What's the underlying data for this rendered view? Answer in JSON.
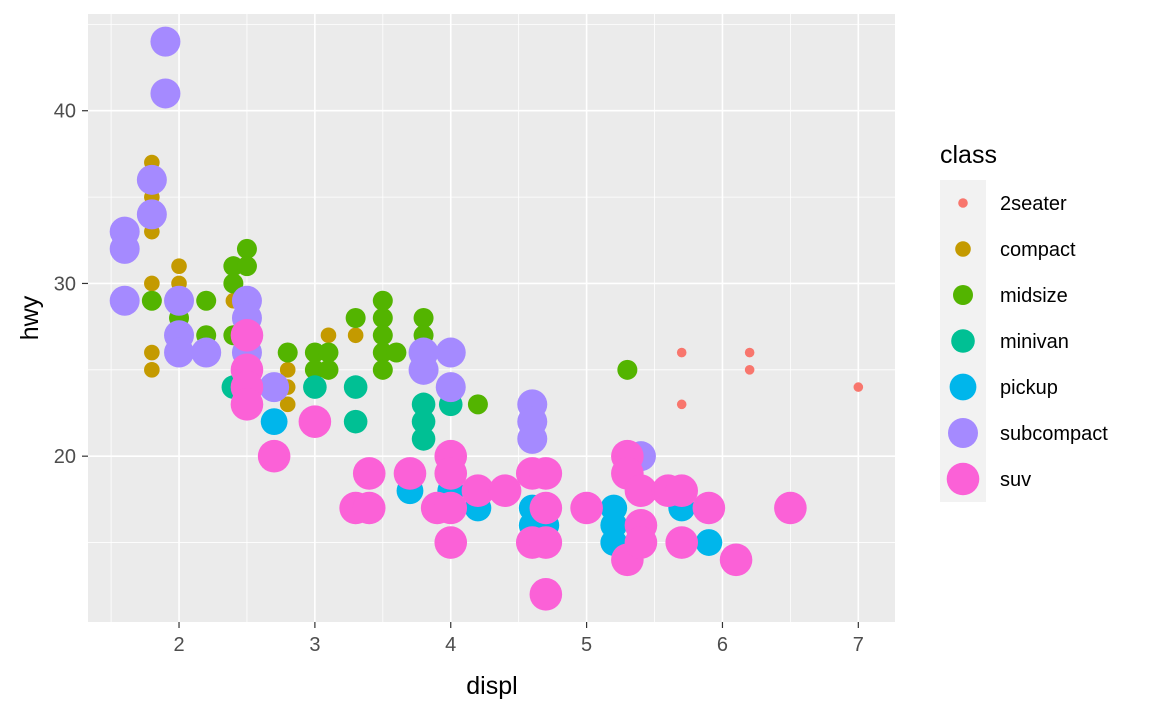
{
  "chart_data": {
    "type": "scatter",
    "title": "",
    "xlabel": "displ",
    "ylabel": "hwy",
    "xlim": [
      1.33,
      7.27
    ],
    "ylim": [
      10.4,
      45.6
    ],
    "xticks": [
      2,
      3,
      4,
      5,
      6,
      7
    ],
    "yticks": [
      20,
      30,
      40
    ],
    "grid": true,
    "legend": {
      "title": "class",
      "placement": "right",
      "encodes": "color and size"
    },
    "series": [
      {
        "name": "2seater",
        "color": "#F8766D",
        "size_level": 1,
        "points": [
          [
            5.7,
            26
          ],
          [
            5.7,
            23
          ],
          [
            6.2,
            26
          ],
          [
            6.2,
            25
          ],
          [
            7.0,
            24
          ]
        ]
      },
      {
        "name": "compact",
        "color": "#C49A00",
        "size_level": 2,
        "points": [
          [
            1.8,
            37
          ],
          [
            1.8,
            35
          ],
          [
            1.8,
            33
          ],
          [
            1.8,
            30
          ],
          [
            1.8,
            26
          ],
          [
            1.8,
            25
          ],
          [
            2.0,
            31
          ],
          [
            2.0,
            30
          ],
          [
            2.0,
            29
          ],
          [
            2.0,
            28
          ],
          [
            2.2,
            29
          ],
          [
            2.2,
            27
          ],
          [
            2.4,
            31
          ],
          [
            2.4,
            29
          ],
          [
            2.5,
            27
          ],
          [
            2.5,
            25
          ],
          [
            2.8,
            25
          ],
          [
            2.8,
            24
          ],
          [
            2.8,
            23
          ],
          [
            3.0,
            26
          ],
          [
            3.1,
            27
          ],
          [
            3.3,
            27
          ]
        ]
      },
      {
        "name": "midsize",
        "color": "#53B400",
        "size_level": 3,
        "points": [
          [
            1.8,
            29
          ],
          [
            2.0,
            29
          ],
          [
            2.0,
            28
          ],
          [
            2.2,
            29
          ],
          [
            2.2,
            27
          ],
          [
            2.4,
            31
          ],
          [
            2.4,
            30
          ],
          [
            2.4,
            27
          ],
          [
            2.5,
            32
          ],
          [
            2.5,
            31
          ],
          [
            2.8,
            26
          ],
          [
            3.0,
            26
          ],
          [
            3.0,
            25
          ],
          [
            3.1,
            26
          ],
          [
            3.1,
            25
          ],
          [
            3.3,
            28
          ],
          [
            3.5,
            29
          ],
          [
            3.5,
            28
          ],
          [
            3.5,
            27
          ],
          [
            3.5,
            26
          ],
          [
            3.5,
            25
          ],
          [
            3.6,
            26
          ],
          [
            3.8,
            28
          ],
          [
            3.8,
            27
          ],
          [
            3.8,
            26
          ],
          [
            4.0,
            23
          ],
          [
            4.2,
            23
          ],
          [
            5.3,
            25
          ]
        ]
      },
      {
        "name": "minivan",
        "color": "#00C094",
        "size_level": 4,
        "points": [
          [
            2.4,
            24
          ],
          [
            3.0,
            24
          ],
          [
            3.3,
            24
          ],
          [
            3.3,
            22
          ],
          [
            3.8,
            23
          ],
          [
            3.8,
            22
          ],
          [
            3.8,
            21
          ],
          [
            4.0,
            23
          ]
        ]
      },
      {
        "name": "pickup",
        "color": "#00B6EB",
        "size_level": 5,
        "points": [
          [
            2.7,
            22
          ],
          [
            2.7,
            20
          ],
          [
            3.4,
            19
          ],
          [
            3.4,
            17
          ],
          [
            3.7,
            18
          ],
          [
            4.0,
            20
          ],
          [
            4.0,
            18
          ],
          [
            4.0,
            17
          ],
          [
            4.2,
            17
          ],
          [
            4.6,
            17
          ],
          [
            4.6,
            16
          ],
          [
            4.7,
            17
          ],
          [
            4.7,
            16
          ],
          [
            5.2,
            17
          ],
          [
            5.2,
            16
          ],
          [
            5.2,
            15
          ],
          [
            5.4,
            15
          ],
          [
            5.7,
            17
          ],
          [
            5.9,
            15
          ]
        ]
      },
      {
        "name": "subcompact",
        "color": "#A58AFF",
        "size_level": 6,
        "points": [
          [
            1.6,
            33
          ],
          [
            1.6,
            32
          ],
          [
            1.6,
            29
          ],
          [
            1.8,
            36
          ],
          [
            1.8,
            34
          ],
          [
            1.9,
            44
          ],
          [
            1.9,
            41
          ],
          [
            2.0,
            29
          ],
          [
            2.0,
            27
          ],
          [
            2.0,
            26
          ],
          [
            2.2,
            26
          ],
          [
            2.5,
            29
          ],
          [
            2.5,
            28
          ],
          [
            2.5,
            26
          ],
          [
            2.7,
            24
          ],
          [
            3.8,
            26
          ],
          [
            3.8,
            25
          ],
          [
            4.0,
            26
          ],
          [
            4.0,
            24
          ],
          [
            4.6,
            23
          ],
          [
            4.6,
            22
          ],
          [
            4.6,
            21
          ],
          [
            5.4,
            20
          ]
        ]
      },
      {
        "name": "suv",
        "color": "#FB61D7",
        "size_level": 7,
        "points": [
          [
            2.5,
            27
          ],
          [
            2.5,
            25
          ],
          [
            2.5,
            24
          ],
          [
            2.5,
            23
          ],
          [
            2.7,
            20
          ],
          [
            3.0,
            22
          ],
          [
            3.3,
            17
          ],
          [
            3.4,
            19
          ],
          [
            3.4,
            17
          ],
          [
            3.7,
            19
          ],
          [
            3.9,
            17
          ],
          [
            4.0,
            20
          ],
          [
            4.0,
            19
          ],
          [
            4.0,
            17
          ],
          [
            4.0,
            15
          ],
          [
            4.2,
            18
          ],
          [
            4.4,
            18
          ],
          [
            4.6,
            19
          ],
          [
            4.6,
            15
          ],
          [
            4.7,
            19
          ],
          [
            4.7,
            17
          ],
          [
            4.7,
            15
          ],
          [
            4.7,
            12
          ],
          [
            5.0,
            17
          ],
          [
            5.3,
            20
          ],
          [
            5.3,
            19
          ],
          [
            5.3,
            14
          ],
          [
            5.4,
            18
          ],
          [
            5.4,
            16
          ],
          [
            5.4,
            15
          ],
          [
            5.6,
            18
          ],
          [
            5.7,
            18
          ],
          [
            5.7,
            15
          ],
          [
            5.9,
            17
          ],
          [
            6.1,
            14
          ],
          [
            6.5,
            17
          ]
        ]
      }
    ]
  }
}
